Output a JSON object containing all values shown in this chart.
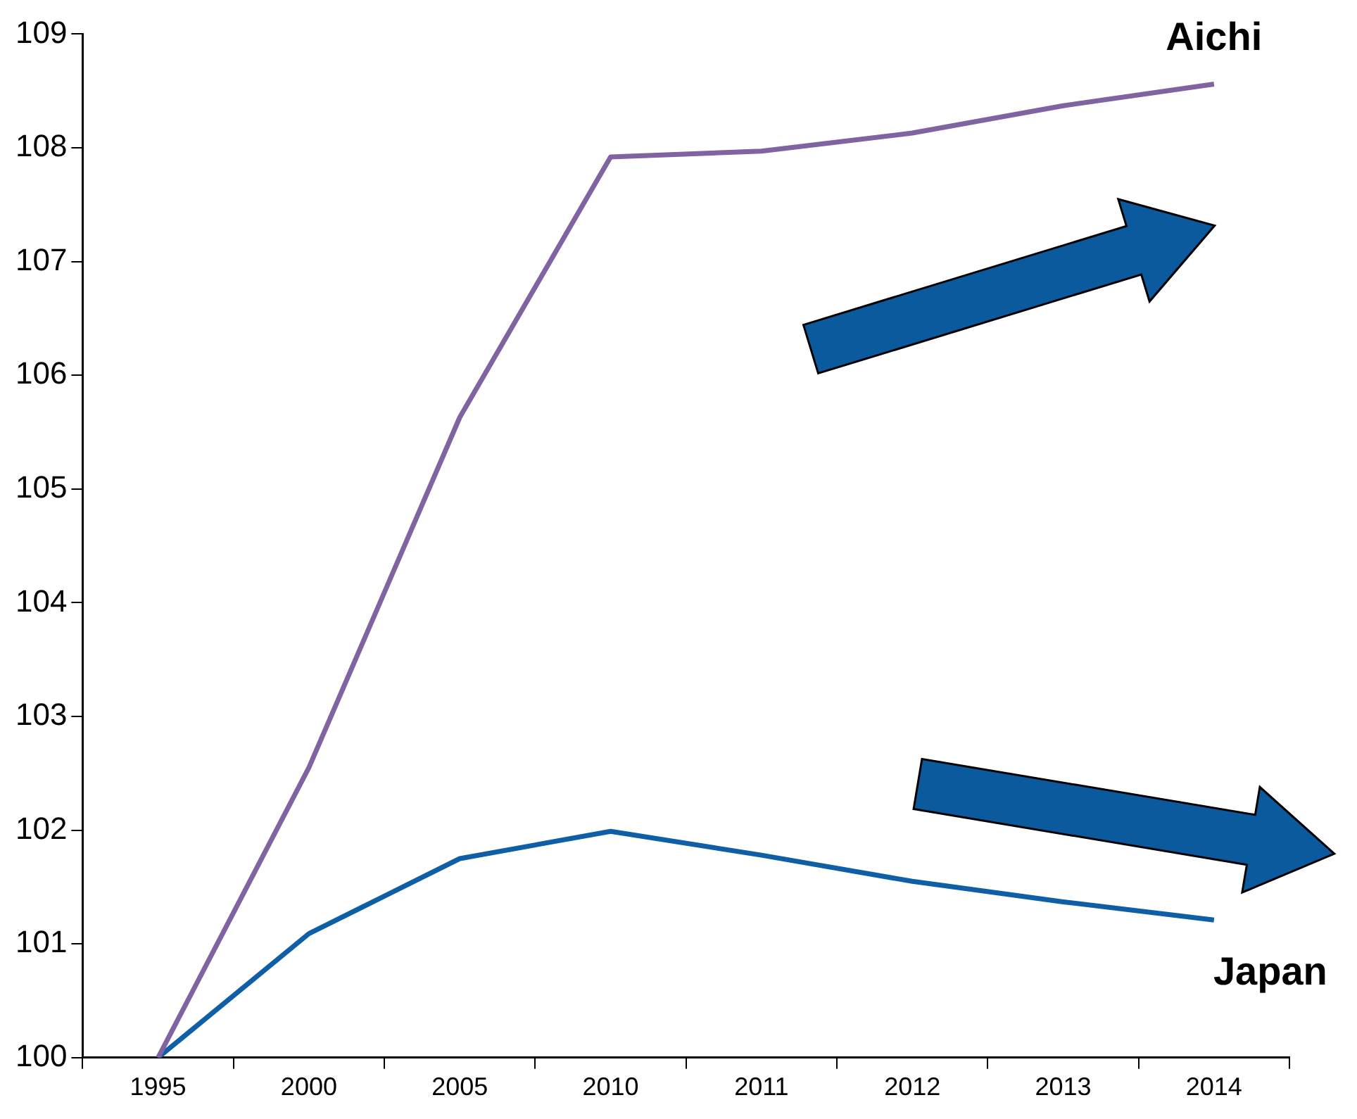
{
  "chart_data": {
    "type": "line",
    "categories": [
      "1995",
      "2000",
      "2005",
      "2010",
      "2011",
      "2012",
      "2013",
      "2014"
    ],
    "series": [
      {
        "name": "Aichi",
        "color": "#8064a2",
        "values": [
          100,
          102.55,
          105.63,
          107.92,
          107.97,
          108.13,
          108.37,
          108.56
        ]
      },
      {
        "name": "Japan",
        "color": "#0f5fa6",
        "values": [
          100,
          101.09,
          101.75,
          101.99,
          101.78,
          101.55,
          101.37,
          101.21
        ]
      }
    ],
    "ylim": [
      100,
      109
    ],
    "yticks": [
      100,
      101,
      102,
      103,
      104,
      105,
      106,
      107,
      108,
      109
    ],
    "grid": false,
    "legend": false,
    "marker": "none",
    "line_style": "solid"
  }
}
